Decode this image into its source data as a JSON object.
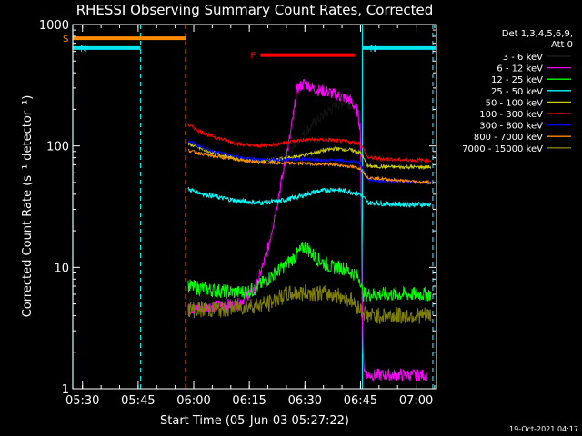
{
  "chart_data": {
    "type": "line",
    "title": "RHESSI Observing Summary Count Rates, Corrected",
    "xlabel": "Start Time (05-Jun-03 05:27:22)",
    "ylabel": "Corrected Count Rate (s⁻¹ detector⁻¹)",
    "x_ticks": [
      "05:30",
      "05:45",
      "06:00",
      "06:15",
      "06:30",
      "06:45",
      "07:00"
    ],
    "y_ticks": [
      "1",
      "10",
      "100",
      "1000"
    ],
    "y_scale": "log",
    "xlim": [
      "05:27:22",
      "07:05:30"
    ],
    "ylim": [
      1,
      1000
    ],
    "grid": false,
    "legend_position": "right",
    "legend_header": [
      "Det 1,3,4,5,6,9,",
      "Att 0"
    ],
    "footer": "19-Oct-2021 04:17",
    "flags": [
      {
        "label": "S",
        "color": "#ff8c00",
        "start": "05:27:22",
        "end": "05:57:50",
        "y": 770
      },
      {
        "label": "N",
        "color": "#00e5ee",
        "start": "05:27:22",
        "end": "05:45:40",
        "y": 640
      },
      {
        "label": "N",
        "color": "#00e5ee",
        "start": "06:45:30",
        "end": "07:05:30",
        "y": 640
      },
      {
        "label": "F",
        "color": "#ff0000",
        "start": "06:18:00",
        "end": "06:43:30",
        "y": 560
      }
    ],
    "vlines": [
      {
        "color": "#00e5ee",
        "style": "solid",
        "time": "05:27:22"
      },
      {
        "color": "#00e5ee",
        "style": "dashed",
        "time": "05:45:40"
      },
      {
        "color": "#ff8c00",
        "style": "dashed",
        "time": "05:57:50"
      },
      {
        "color": "#00e5ee",
        "style": "solid",
        "time": "06:45:30"
      },
      {
        "color": "#00e5ee",
        "style": "dashed",
        "time": "07:04:30"
      }
    ],
    "series": [
      {
        "name": "3 - 6 keV",
        "color": "#000000",
        "noise": 0.05,
        "points": [
          [
            "05:58:30",
            5.5
          ],
          [
            "06:05",
            6
          ],
          [
            "06:12",
            6
          ],
          [
            "06:16",
            7
          ],
          [
            "06:20",
            15
          ],
          [
            "06:23",
            40
          ],
          [
            "06:25",
            75
          ],
          [
            "06:28",
            110
          ],
          [
            "06:31",
            140
          ],
          [
            "06:34",
            170
          ],
          [
            "06:37",
            200
          ],
          [
            "06:40",
            230
          ],
          [
            "06:43",
            220
          ],
          [
            "06:45",
            170
          ],
          [
            "06:45:30",
            4
          ],
          [
            "06:46",
            2
          ],
          [
            "06:47",
            1.2
          ]
        ]
      },
      {
        "name": "6 - 12 keV",
        "color": "#ff00ff",
        "noise": 0.05,
        "points": [
          [
            "05:58:30",
            4.5
          ],
          [
            "06:05",
            4.8
          ],
          [
            "06:12",
            5
          ],
          [
            "06:17",
            7
          ],
          [
            "06:20",
            14
          ],
          [
            "06:23",
            40
          ],
          [
            "06:26",
            120
          ],
          [
            "06:28",
            300
          ],
          [
            "06:30",
            330
          ],
          [
            "06:33",
            290
          ],
          [
            "06:36",
            280
          ],
          [
            "06:39",
            260
          ],
          [
            "06:42",
            240
          ],
          [
            "06:44",
            200
          ],
          [
            "06:45",
            140
          ],
          [
            "06:45:30",
            3
          ],
          [
            "06:46",
            1.4
          ],
          [
            "06:47",
            1.3
          ],
          [
            "07:03",
            1.3
          ]
        ]
      },
      {
        "name": "12 - 25 keV",
        "color": "#00ff00",
        "noise": 0.06,
        "points": [
          [
            "05:58:30",
            7
          ],
          [
            "06:05",
            6.5
          ],
          [
            "06:12",
            6.2
          ],
          [
            "06:16",
            6.5
          ],
          [
            "06:20",
            8
          ],
          [
            "06:24",
            10
          ],
          [
            "06:27",
            12
          ],
          [
            "06:30",
            15
          ],
          [
            "06:33",
            12
          ],
          [
            "06:37",
            10
          ],
          [
            "06:40",
            10
          ],
          [
            "06:43",
            9
          ],
          [
            "06:45",
            8
          ],
          [
            "06:45:30",
            6
          ],
          [
            "07:04",
            6
          ]
        ]
      },
      {
        "name": "25 - 50 keV",
        "color": "#00ffff",
        "noise": 0.02,
        "points": [
          [
            "05:58:30",
            44
          ],
          [
            "06:03",
            40
          ],
          [
            "06:08",
            37
          ],
          [
            "06:13",
            35
          ],
          [
            "06:18",
            34
          ],
          [
            "06:23",
            35
          ],
          [
            "06:28",
            38
          ],
          [
            "06:33",
            42
          ],
          [
            "06:38",
            44
          ],
          [
            "06:42",
            42
          ],
          [
            "06:45",
            40
          ],
          [
            "06:47",
            34
          ],
          [
            "06:55",
            33
          ],
          [
            "07:04",
            33
          ]
        ]
      },
      {
        "name": "50 - 100 keV",
        "color": "#cccc00",
        "noise": 0.015,
        "points": [
          [
            "05:58:30",
            105
          ],
          [
            "06:03",
            92
          ],
          [
            "06:08",
            83
          ],
          [
            "06:13",
            77
          ],
          [
            "06:18",
            75
          ],
          [
            "06:23",
            77
          ],
          [
            "06:28",
            82
          ],
          [
            "06:33",
            89
          ],
          [
            "06:38",
            95
          ],
          [
            "06:42",
            93
          ],
          [
            "06:45",
            88
          ],
          [
            "06:47",
            68
          ],
          [
            "06:55",
            67
          ],
          [
            "07:04",
            67
          ]
        ]
      },
      {
        "name": "100 - 300 keV",
        "color": "#ff0000",
        "noise": 0.015,
        "points": [
          [
            "05:58:30",
            150
          ],
          [
            "06:02",
            130
          ],
          [
            "06:07",
            115
          ],
          [
            "06:12",
            104
          ],
          [
            "06:17",
            100
          ],
          [
            "06:22",
            103
          ],
          [
            "06:27",
            110
          ],
          [
            "06:32",
            113
          ],
          [
            "06:37",
            112
          ],
          [
            "06:42",
            108
          ],
          [
            "06:45",
            105
          ],
          [
            "06:47",
            80
          ],
          [
            "06:55",
            77
          ],
          [
            "07:04",
            76
          ]
        ]
      },
      {
        "name": "300 - 800 keV",
        "color": "#0000ff",
        "noise": 0.012,
        "points": [
          [
            "05:58:30",
            110
          ],
          [
            "06:03",
            95
          ],
          [
            "06:08",
            86
          ],
          [
            "06:13",
            80
          ],
          [
            "06:18",
            77
          ],
          [
            "06:23",
            77
          ],
          [
            "06:28",
            78
          ],
          [
            "06:33",
            77
          ],
          [
            "06:38",
            76
          ],
          [
            "06:42",
            75
          ],
          [
            "06:45",
            72
          ],
          [
            "06:47",
            52
          ],
          [
            "06:55",
            51
          ],
          [
            "07:04",
            50
          ]
        ]
      },
      {
        "name": "800 - 7000 keV",
        "color": "#ff8c00",
        "noise": 0.012,
        "points": [
          [
            "05:58:30",
            92
          ],
          [
            "06:03",
            85
          ],
          [
            "06:08",
            80
          ],
          [
            "06:13",
            76
          ],
          [
            "06:18",
            73
          ],
          [
            "06:23",
            72
          ],
          [
            "06:28",
            72
          ],
          [
            "06:33",
            71
          ],
          [
            "06:38",
            70
          ],
          [
            "06:42",
            68
          ],
          [
            "06:45",
            65
          ],
          [
            "06:47",
            55
          ],
          [
            "06:55",
            52
          ],
          [
            "07:04",
            50
          ]
        ]
      },
      {
        "name": "7000 - 15000 keV",
        "color": "#808000",
        "noise": 0.07,
        "points": [
          [
            "05:58:30",
            4.5
          ],
          [
            "06:08",
            4.5
          ],
          [
            "06:14",
            4.8
          ],
          [
            "06:20",
            5
          ],
          [
            "06:25",
            6
          ],
          [
            "06:32",
            6.2
          ],
          [
            "06:38",
            6
          ],
          [
            "06:42",
            5.5
          ],
          [
            "06:45",
            4.5
          ],
          [
            "06:47",
            4
          ],
          [
            "07:04",
            4
          ]
        ]
      }
    ]
  }
}
